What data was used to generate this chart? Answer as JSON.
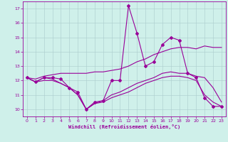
{
  "xlabel": "Windchill (Refroidissement éolien,°C)",
  "xlim": [
    -0.5,
    23.5
  ],
  "ylim": [
    9.5,
    17.5
  ],
  "xticks": [
    0,
    1,
    2,
    3,
    4,
    5,
    6,
    7,
    8,
    9,
    10,
    11,
    12,
    13,
    14,
    15,
    16,
    17,
    18,
    19,
    20,
    21,
    22,
    23
  ],
  "yticks": [
    10,
    11,
    12,
    13,
    14,
    15,
    16,
    17
  ],
  "background_color": "#cff0ea",
  "grid_color": "#aacccc",
  "line_color": "#990099",
  "curves": [
    {
      "x": [
        0,
        1,
        2,
        3,
        4,
        5,
        6,
        7,
        8,
        9,
        10,
        11,
        12,
        13,
        14,
        15,
        16,
        17,
        18,
        19,
        20,
        21,
        22,
        23
      ],
      "y": [
        12.2,
        11.9,
        12.2,
        12.2,
        12.1,
        11.5,
        11.2,
        10.0,
        10.5,
        10.6,
        12.0,
        12.0,
        17.2,
        15.3,
        13.0,
        13.3,
        14.5,
        15.0,
        14.8,
        12.5,
        12.2,
        10.8,
        10.2,
        10.2
      ],
      "has_markers": true
    },
    {
      "x": [
        0,
        1,
        2,
        3,
        4,
        5,
        6,
        7,
        8,
        9,
        10,
        11,
        12,
        13,
        14,
        15,
        16,
        17,
        18,
        19,
        20,
        21,
        22,
        23
      ],
      "y": [
        12.2,
        12.1,
        12.3,
        12.4,
        12.5,
        12.5,
        12.5,
        12.5,
        12.6,
        12.6,
        12.7,
        12.8,
        13.0,
        13.3,
        13.5,
        13.8,
        14.0,
        14.2,
        14.3,
        14.3,
        14.2,
        14.4,
        14.3,
        14.3
      ],
      "has_markers": false
    },
    {
      "x": [
        0,
        1,
        2,
        3,
        4,
        5,
        6,
        7,
        8,
        9,
        10,
        11,
        12,
        13,
        14,
        15,
        16,
        17,
        18,
        19,
        20,
        21,
        22,
        23
      ],
      "y": [
        12.2,
        11.9,
        12.2,
        12.1,
        11.8,
        11.5,
        11.0,
        10.0,
        10.4,
        10.6,
        11.0,
        11.2,
        11.5,
        11.8,
        12.0,
        12.2,
        12.5,
        12.6,
        12.5,
        12.5,
        12.3,
        12.2,
        11.5,
        10.5
      ],
      "has_markers": false
    },
    {
      "x": [
        0,
        1,
        2,
        3,
        4,
        5,
        6,
        7,
        8,
        9,
        10,
        11,
        12,
        13,
        14,
        15,
        16,
        17,
        18,
        19,
        20,
        21,
        22,
        23
      ],
      "y": [
        12.2,
        11.9,
        12.0,
        12.0,
        11.8,
        11.5,
        11.0,
        10.0,
        10.4,
        10.5,
        10.8,
        11.0,
        11.2,
        11.5,
        11.8,
        12.0,
        12.2,
        12.3,
        12.3,
        12.2,
        12.0,
        11.0,
        10.5,
        10.2
      ],
      "has_markers": false
    }
  ]
}
